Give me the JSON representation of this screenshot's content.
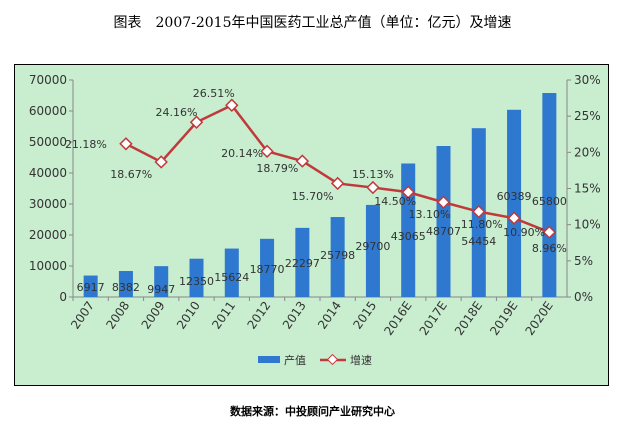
{
  "title": "图表　2007-2015年中国医药工业总产值（单位：亿元）及增速",
  "source": "数据来源：中投顾问产业研究中心",
  "chart_data": {
    "type": "bar+line",
    "title": "图表　2007-2015年中国医药工业总产值（单位：亿元）及增速",
    "categories": [
      "2007",
      "2008",
      "2009",
      "2010",
      "2011",
      "2012",
      "2013",
      "2014",
      "2015",
      "2016E",
      "2017E",
      "2018E",
      "2019E",
      "2020E"
    ],
    "series": [
      {
        "name": "产值",
        "type": "bar",
        "axis": "left",
        "color": "#2e78cf",
        "values": [
          6917,
          8382,
          9947,
          12350,
          15624,
          18770,
          22297,
          25798,
          29700,
          43065,
          48707,
          54454,
          60389,
          65800
        ],
        "labels": [
          "6917",
          "8382",
          "9947",
          "12350",
          "15624",
          "18770",
          "22297",
          "25798",
          "29700",
          "43065",
          "48707",
          "54454",
          "60389",
          "65800"
        ]
      },
      {
        "name": "增速",
        "type": "line",
        "axis": "right",
        "color": "#c0393b",
        "values": [
          null,
          21.18,
          18.67,
          24.16,
          26.51,
          20.14,
          18.79,
          15.7,
          15.13,
          14.5,
          13.1,
          11.8,
          10.9,
          8.96
        ],
        "labels": [
          null,
          "21.18%",
          "18.67%",
          "24.16%",
          "26.51%",
          "20.14%",
          "18.79%",
          "15.70%",
          "15.13%",
          "14.50%",
          "13.10%",
          "11.80%",
          "10.90%",
          "8.96%"
        ]
      }
    ],
    "ylim": [
      0,
      70000
    ],
    "yticks": [
      "0",
      "10000",
      "20000",
      "30000",
      "40000",
      "50000",
      "60000",
      "70000"
    ],
    "y2lim": [
      0,
      30
    ],
    "y2ticks": [
      "0%",
      "5%",
      "10%",
      "15%",
      "20%",
      "25%",
      "30%"
    ],
    "grid": false,
    "legend": "bottom"
  }
}
